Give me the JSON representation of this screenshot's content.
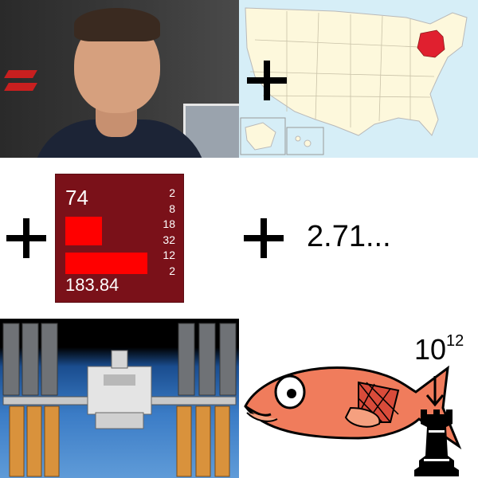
{
  "element_tile": {
    "atomic_number": "74",
    "atomic_mass": "183.84",
    "shells": [
      "2",
      "8",
      "18",
      "32",
      "12",
      "2"
    ],
    "color_background": "#7a1119",
    "color_bar": "#ff0000"
  },
  "number_text": "2.71...",
  "exponent": {
    "base": "10",
    "power": "12"
  },
  "map": {
    "highlight_color": "#e0202f",
    "land_color": "#fdf8dc",
    "water_color": "#d6eef7"
  },
  "icons": [
    "plus-icon",
    "fish-icon",
    "rook-icon",
    "arrow-down-icon"
  ]
}
